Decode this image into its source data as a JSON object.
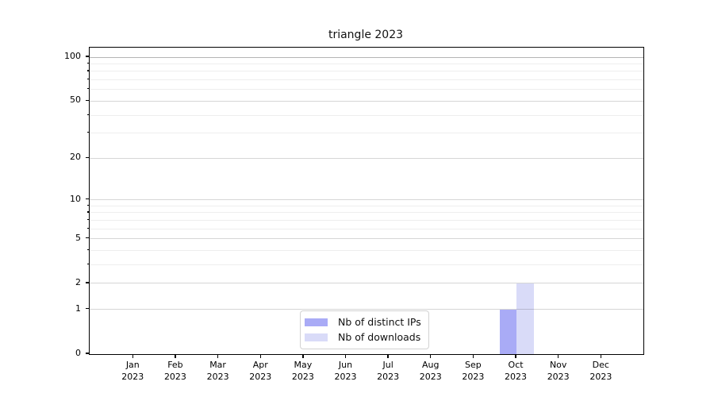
{
  "chart_data": {
    "type": "bar",
    "title": "triangle 2023",
    "categories": [
      "Jan",
      "Feb",
      "Mar",
      "Apr",
      "May",
      "Jun",
      "Jul",
      "Aug",
      "Sep",
      "Oct",
      "Nov",
      "Dec"
    ],
    "year": "2023",
    "series": [
      {
        "name": "Nb of distinct IPs",
        "color": "#a9abf6",
        "values": [
          0,
          0,
          0,
          0,
          0,
          0,
          0,
          0,
          0,
          1,
          0,
          0
        ]
      },
      {
        "name": "Nb of downloads",
        "color": "#d9dbf8",
        "values": [
          0,
          0,
          0,
          0,
          0,
          0,
          0,
          0,
          0,
          2,
          0,
          0
        ]
      }
    ],
    "yscale": "log1p",
    "ylim": [
      0,
      116.2
    ],
    "yticks": [
      0,
      1,
      2,
      5,
      10,
      20,
      50,
      100
    ],
    "yticks_minor": [
      3,
      4,
      6,
      7,
      8,
      9,
      30,
      40,
      60,
      70,
      80,
      90
    ],
    "grid": "horizontal",
    "legend_position": "lower center"
  },
  "colors": {
    "background": "#ffffff",
    "axis": "#000000",
    "grid_major": "rgba(0,0,0,0.16)",
    "grid_minor": "rgba(0,0,0,0.065)",
    "grid_top": "rgba(0,0,0,0.29)",
    "legend_border": "#d2d2d2",
    "text": "#111111"
  }
}
